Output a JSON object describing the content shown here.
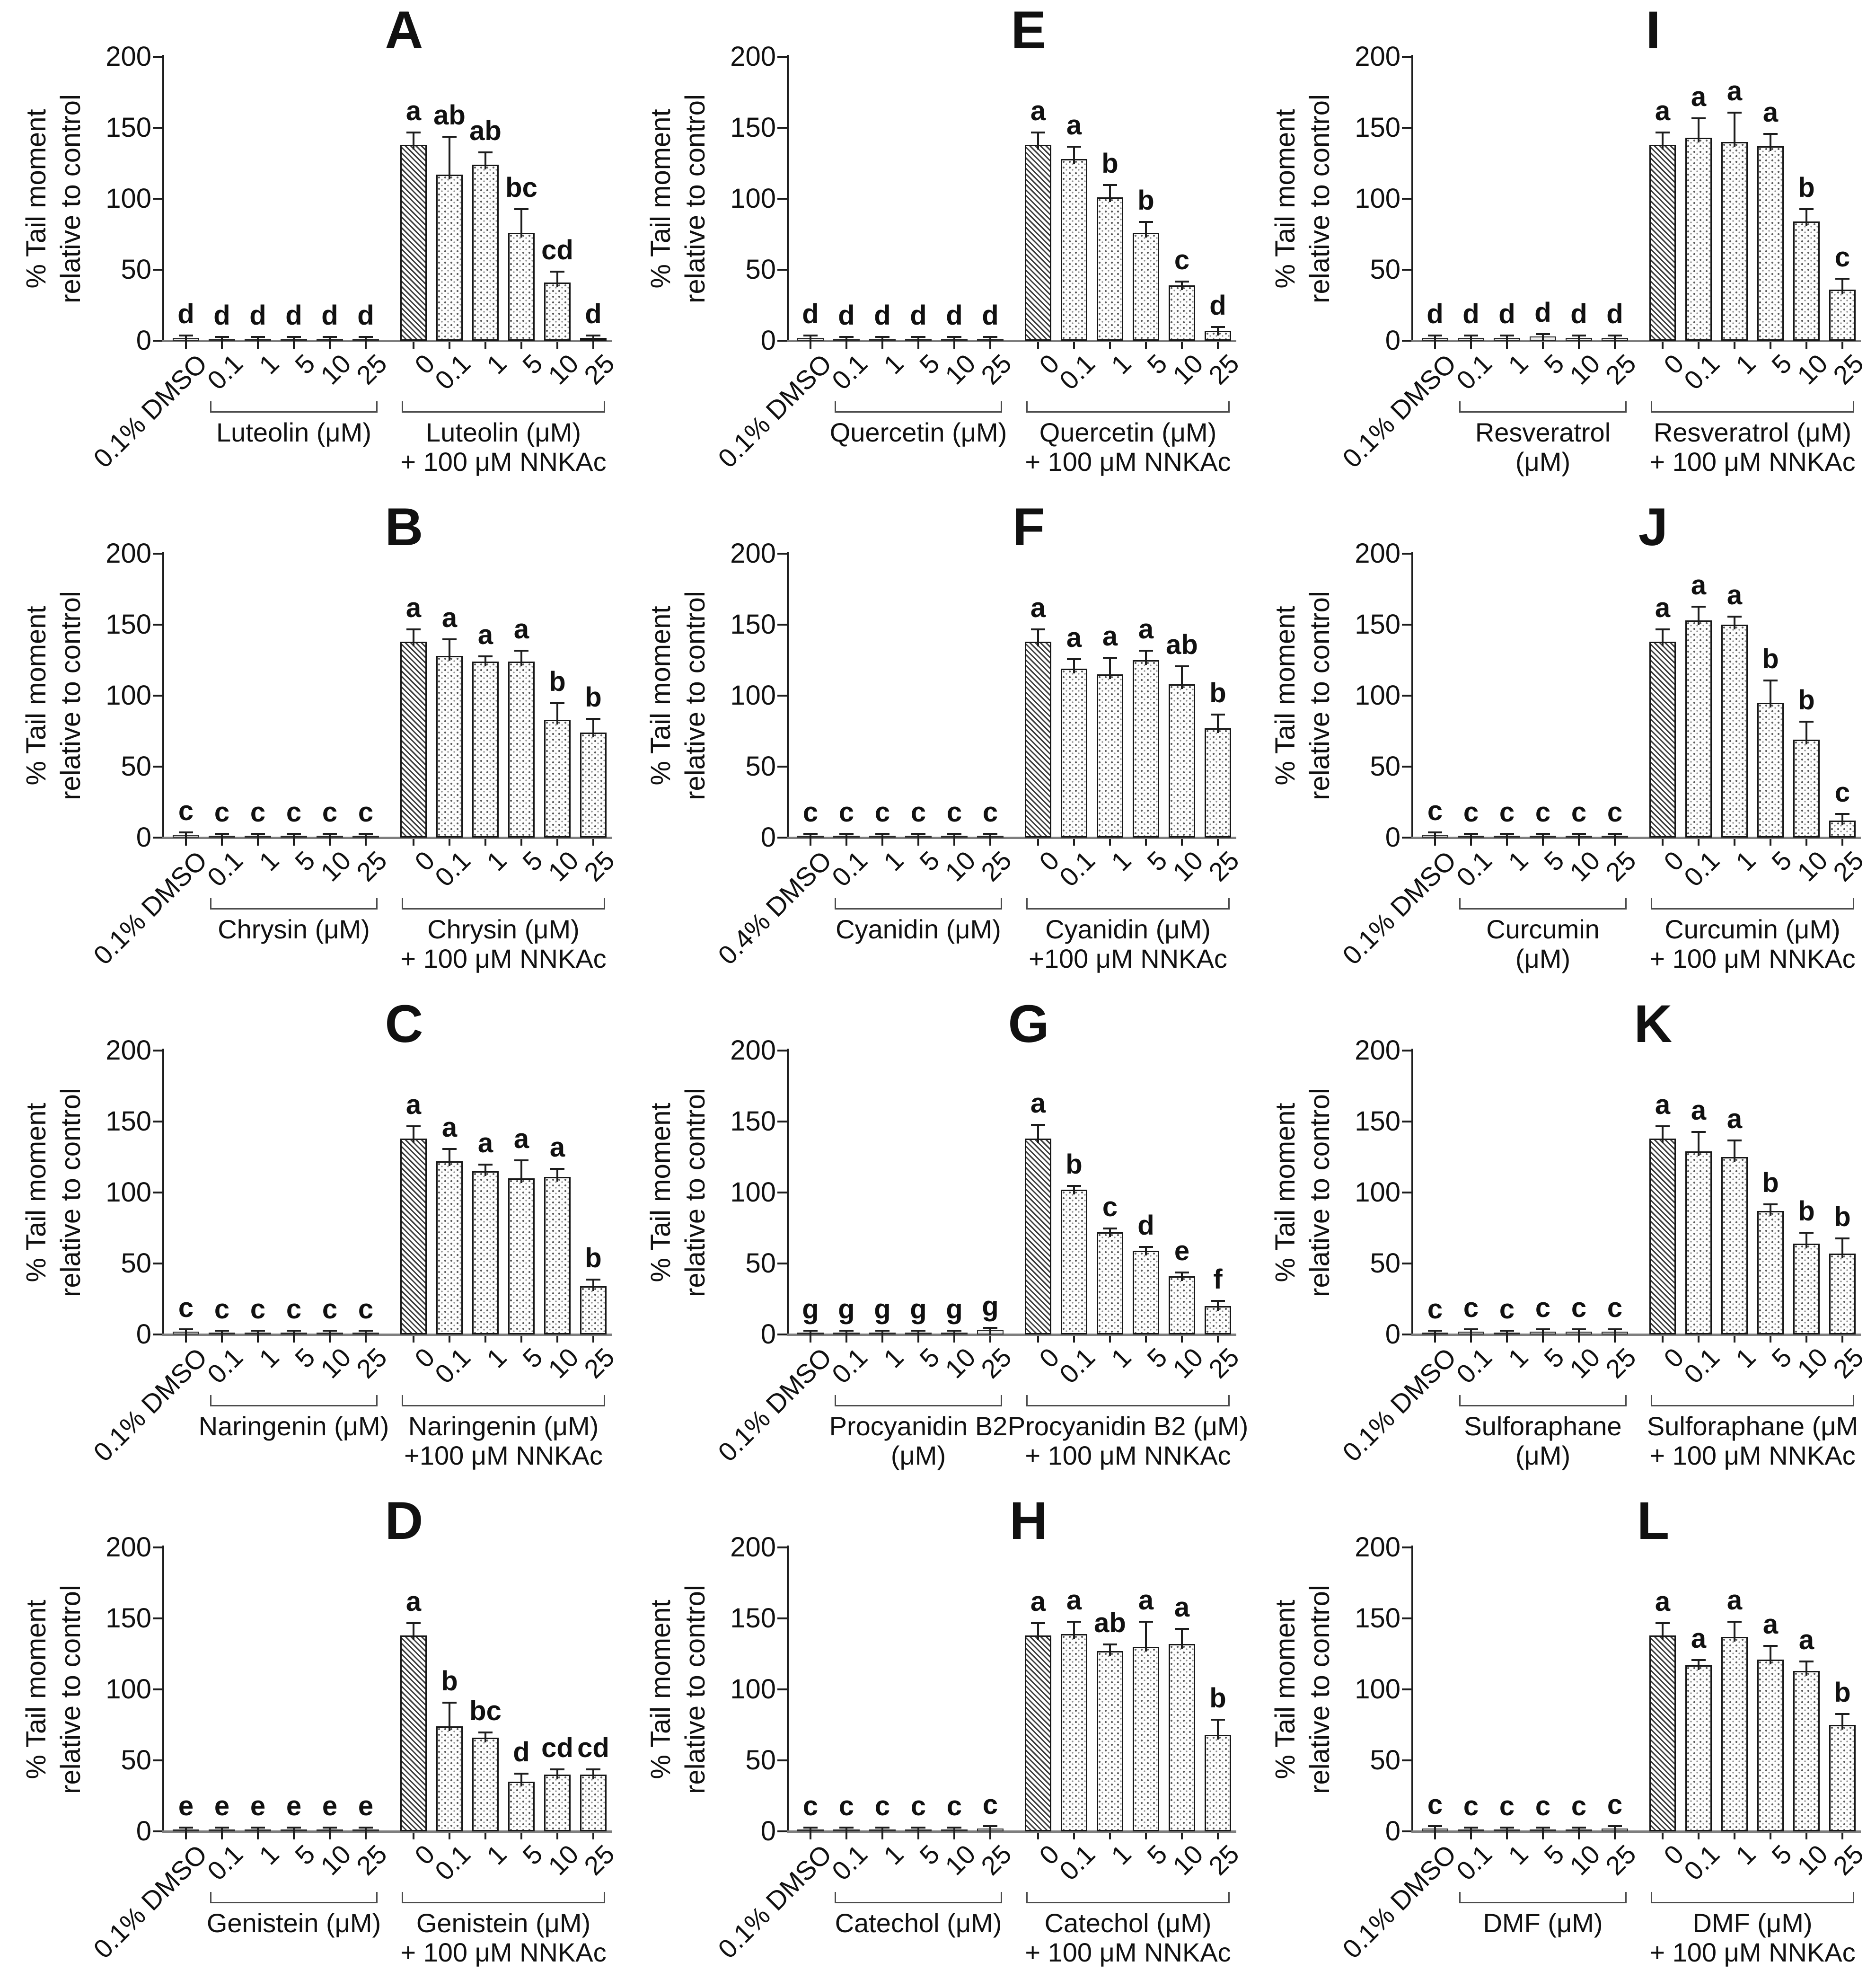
{
  "figure": {
    "background": "#ffffff",
    "bar_border_color": "#161616",
    "baseline_color": "#7e7e7e",
    "text_color": "#111111"
  },
  "chart_data": [
    {
      "type": "bar",
      "panel_letter": "A",
      "compound": "Luteolin",
      "ylabel_line1": "% Tail moment",
      "ylabel_line2": "relative to control",
      "ylim": [
        0,
        200
      ],
      "yticks": [
        0,
        50,
        100,
        150,
        200
      ],
      "grid": false,
      "categories": [
        "0.1% DMSO",
        "0.1",
        "1",
        "5",
        "10",
        "25",
        "0",
        "0.1",
        "1",
        "5",
        "10",
        "25"
      ],
      "values": [
        2,
        1,
        1,
        1,
        1,
        1,
        138,
        117,
        124,
        76,
        41,
        2
      ],
      "errors": [
        1,
        1,
        1,
        1,
        1,
        1,
        8,
        26,
        8,
        16,
        7,
        1
      ],
      "sig_letters": [
        "d",
        "d",
        "d",
        "d",
        "d",
        "d",
        "a",
        "ab",
        "ab",
        "bc",
        "cd",
        "d"
      ],
      "groups": [
        {
          "label_lines": [
            "Luteolin (μM)"
          ],
          "start": 1,
          "end": 5
        },
        {
          "label_lines": [
            "Luteolin (μM)",
            "+ 100 μM NNKAc"
          ],
          "start": 6,
          "end": 11
        }
      ]
    },
    {
      "type": "bar",
      "panel_letter": "E",
      "compound": "Quercetin",
      "ylabel_line1": "% Tail moment",
      "ylabel_line2": "relative to control",
      "ylim": [
        0,
        200
      ],
      "yticks": [
        0,
        50,
        100,
        150,
        200
      ],
      "grid": false,
      "categories": [
        "0.1% DMSO",
        "0.1",
        "1",
        "5",
        "10",
        "25",
        "0",
        "0.1",
        "1",
        "5",
        "10",
        "25"
      ],
      "values": [
        2,
        1,
        1,
        1,
        1,
        1,
        138,
        128,
        101,
        76,
        39,
        7
      ],
      "errors": [
        1,
        1,
        1,
        1,
        1,
        1,
        8,
        8,
        8,
        7,
        2,
        2
      ],
      "sig_letters": [
        "d",
        "d",
        "d",
        "d",
        "d",
        "d",
        "a",
        "a",
        "b",
        "b",
        "c",
        "d"
      ],
      "groups": [
        {
          "label_lines": [
            "Quercetin (μM)"
          ],
          "start": 1,
          "end": 5
        },
        {
          "label_lines": [
            "Quercetin (μM)",
            "+ 100 μM NNKAc"
          ],
          "start": 6,
          "end": 11
        }
      ]
    },
    {
      "type": "bar",
      "panel_letter": "I",
      "compound": "Resveratrol",
      "ylabel_line1": "% Tail moment",
      "ylabel_line2": "relative to control",
      "ylim": [
        0,
        200
      ],
      "yticks": [
        0,
        50,
        100,
        150,
        200
      ],
      "grid": false,
      "categories": [
        "0.1% DMSO",
        "0.1",
        "1",
        "5",
        "10",
        "25",
        "0",
        "0.1",
        "1",
        "5",
        "10",
        "25"
      ],
      "values": [
        2,
        2,
        2,
        3,
        2,
        2,
        138,
        143,
        140,
        137,
        84,
        36
      ],
      "errors": [
        1,
        1,
        1,
        1,
        1,
        1,
        8,
        13,
        20,
        8,
        8,
        7
      ],
      "sig_letters": [
        "d",
        "d",
        "d",
        "d",
        "d",
        "d",
        "a",
        "a",
        "a",
        "a",
        "b",
        "c"
      ],
      "groups": [
        {
          "label_lines": [
            "Resveratrol",
            "(μM)"
          ],
          "start": 1,
          "end": 5
        },
        {
          "label_lines": [
            "Resveratrol (μM)",
            "+ 100 μM NNKAc"
          ],
          "start": 6,
          "end": 11
        }
      ]
    },
    {
      "type": "bar",
      "panel_letter": "B",
      "compound": "Chrysin",
      "ylabel_line1": "% Tail moment",
      "ylabel_line2": "relative to control",
      "ylim": [
        0,
        200
      ],
      "yticks": [
        0,
        50,
        100,
        150,
        200
      ],
      "grid": false,
      "categories": [
        "0.1% DMSO",
        "0.1",
        "1",
        "5",
        "10",
        "25",
        "0",
        "0.1",
        "1",
        "5",
        "10",
        "25"
      ],
      "values": [
        2,
        1,
        1,
        1,
        1,
        1,
        138,
        128,
        124,
        124,
        83,
        74
      ],
      "errors": [
        1,
        1,
        1,
        1,
        1,
        1,
        8,
        11,
        3,
        7,
        11,
        9
      ],
      "sig_letters": [
        "c",
        "c",
        "c",
        "c",
        "c",
        "c",
        "a",
        "a",
        "a",
        "a",
        "b",
        "b"
      ],
      "groups": [
        {
          "label_lines": [
            "Chrysin (μM)"
          ],
          "start": 1,
          "end": 5
        },
        {
          "label_lines": [
            "Chrysin (μM)",
            "+ 100 μM NNKAc"
          ],
          "start": 6,
          "end": 11
        }
      ]
    },
    {
      "type": "bar",
      "panel_letter": "F",
      "compound": "Cyanidin",
      "ylabel_line1": "% Tail moment",
      "ylabel_line2": "relative to control",
      "ylim": [
        0,
        200
      ],
      "yticks": [
        0,
        50,
        100,
        150,
        200
      ],
      "grid": false,
      "categories": [
        "0.4% DMSO",
        "0.1",
        "1",
        "5",
        "10",
        "25",
        "0",
        "0.1",
        "1",
        "5",
        "10",
        "25"
      ],
      "values": [
        1,
        1,
        1,
        1,
        1,
        1,
        138,
        119,
        115,
        125,
        108,
        77
      ],
      "errors": [
        1,
        1,
        1,
        1,
        1,
        1,
        8,
        6,
        11,
        6,
        12,
        9
      ],
      "sig_letters": [
        "c",
        "c",
        "c",
        "c",
        "c",
        "c",
        "a",
        "a",
        "a",
        "a",
        "ab",
        "b"
      ],
      "groups": [
        {
          "label_lines": [
            "Cyanidin (μM)"
          ],
          "start": 1,
          "end": 5
        },
        {
          "label_lines": [
            "Cyanidin (μM)",
            "+100 μM NNKAc"
          ],
          "start": 6,
          "end": 11
        }
      ]
    },
    {
      "type": "bar",
      "panel_letter": "J",
      "compound": "Curcumin",
      "ylabel_line1": "% Tail moment",
      "ylabel_line2": "relative to control",
      "ylim": [
        0,
        200
      ],
      "yticks": [
        0,
        50,
        100,
        150,
        200
      ],
      "grid": false,
      "categories": [
        "0.1% DMSO",
        "0.1",
        "1",
        "5",
        "10",
        "25",
        "0",
        "0.1",
        "1",
        "5",
        "10",
        "25"
      ],
      "values": [
        2,
        1,
        1,
        1,
        1,
        1,
        138,
        153,
        150,
        95,
        69,
        12
      ],
      "errors": [
        1,
        1,
        1,
        1,
        1,
        1,
        8,
        9,
        5,
        15,
        12,
        4
      ],
      "sig_letters": [
        "c",
        "c",
        "c",
        "c",
        "c",
        "c",
        "a",
        "a",
        "a",
        "b",
        "b",
        "c"
      ],
      "groups": [
        {
          "label_lines": [
            "Curcumin",
            "(μM)"
          ],
          "start": 1,
          "end": 5
        },
        {
          "label_lines": [
            "Curcumin (μM)",
            "+ 100 μM NNKAc"
          ],
          "start": 6,
          "end": 11
        }
      ]
    },
    {
      "type": "bar",
      "panel_letter": "C",
      "compound": "Naringenin",
      "ylabel_line1": "% Tail moment",
      "ylabel_line2": "relative to control",
      "ylim": [
        0,
        200
      ],
      "yticks": [
        0,
        50,
        100,
        150,
        200
      ],
      "grid": false,
      "categories": [
        "0.1% DMSO",
        "0.1",
        "1",
        "5",
        "10",
        "25",
        "0",
        "0.1",
        "1",
        "5",
        "10",
        "25"
      ],
      "values": [
        2,
        1,
        1,
        1,
        1,
        1,
        138,
        122,
        115,
        110,
        111,
        34
      ],
      "errors": [
        1,
        1,
        1,
        1,
        1,
        1,
        8,
        8,
        4,
        12,
        5,
        4
      ],
      "sig_letters": [
        "c",
        "c",
        "c",
        "c",
        "c",
        "c",
        "a",
        "a",
        "a",
        "a",
        "a",
        "b"
      ],
      "groups": [
        {
          "label_lines": [
            "Naringenin (μM)"
          ],
          "start": 1,
          "end": 5
        },
        {
          "label_lines": [
            "Naringenin (μM)",
            "+100 μM NNKAc"
          ],
          "start": 6,
          "end": 11
        }
      ]
    },
    {
      "type": "bar",
      "panel_letter": "G",
      "compound": "Procyanidin B2",
      "ylabel_line1": "% Tail moment",
      "ylabel_line2": "relative to control",
      "ylim": [
        0,
        200
      ],
      "yticks": [
        0,
        50,
        100,
        150,
        200
      ],
      "grid": false,
      "categories": [
        "0.1% DMSO",
        "0.1",
        "1",
        "5",
        "10",
        "25",
        "0",
        "0.1",
        "1",
        "5",
        "10",
        "25"
      ],
      "values": [
        1,
        1,
        1,
        1,
        1,
        3,
        138,
        102,
        72,
        59,
        41,
        20
      ],
      "errors": [
        1,
        1,
        1,
        1,
        1,
        1,
        9,
        2,
        2,
        2,
        2,
        3
      ],
      "sig_letters": [
        "g",
        "g",
        "g",
        "g",
        "g",
        "g",
        "a",
        "b",
        "c",
        "d",
        "e",
        "f"
      ],
      "groups": [
        {
          "label_lines": [
            "Procyanidin B2",
            "(μM)"
          ],
          "start": 1,
          "end": 5
        },
        {
          "label_lines": [
            "Procyanidin B2 (μM)",
            "+ 100 μM NNKAc"
          ],
          "start": 6,
          "end": 11
        }
      ]
    },
    {
      "type": "bar",
      "panel_letter": "K",
      "compound": "Sulforaphane",
      "ylabel_line1": "% Tail moment",
      "ylabel_line2": "relative to control",
      "ylim": [
        0,
        200
      ],
      "yticks": [
        0,
        50,
        100,
        150,
        200
      ],
      "grid": false,
      "categories": [
        "0.1% DMSO",
        "0.1",
        "1",
        "5",
        "10",
        "25",
        "0",
        "0.1",
        "1",
        "5",
        "10",
        "25"
      ],
      "values": [
        1,
        2,
        1,
        2,
        2,
        2,
        138,
        129,
        125,
        87,
        64,
        57
      ],
      "errors": [
        1,
        1,
        1,
        1,
        1,
        1,
        8,
        13,
        11,
        4,
        7,
        10
      ],
      "sig_letters": [
        "c",
        "c",
        "c",
        "c",
        "c",
        "c",
        "a",
        "a",
        "a",
        "b",
        "b",
        "b"
      ],
      "groups": [
        {
          "label_lines": [
            "Sulforaphane",
            "(μM)"
          ],
          "start": 1,
          "end": 5
        },
        {
          "label_lines": [
            "Sulforaphane (μM",
            "+ 100 μM NNKAc"
          ],
          "start": 6,
          "end": 11
        }
      ]
    },
    {
      "type": "bar",
      "panel_letter": "D",
      "compound": "Genistein",
      "ylabel_line1": "% Tail moment",
      "ylabel_line2": "relative to control",
      "ylim": [
        0,
        200
      ],
      "yticks": [
        0,
        50,
        100,
        150,
        200
      ],
      "grid": false,
      "categories": [
        "0.1% DMSO",
        "0.1",
        "1",
        "5",
        "10",
        "25",
        "0",
        "0.1",
        "1",
        "5",
        "10",
        "25"
      ],
      "values": [
        1,
        1,
        1,
        1,
        1,
        1,
        138,
        74,
        66,
        35,
        40,
        40
      ],
      "errors": [
        1,
        1,
        1,
        1,
        1,
        1,
        8,
        16,
        3,
        5,
        3,
        3
      ],
      "sig_letters": [
        "e",
        "e",
        "e",
        "e",
        "e",
        "e",
        "a",
        "b",
        "bc",
        "d",
        "cd",
        "cd"
      ],
      "groups": [
        {
          "label_lines": [
            "Genistein (μM)"
          ],
          "start": 1,
          "end": 5
        },
        {
          "label_lines": [
            "Genistein (μM)",
            "+ 100 μM NNKAc"
          ],
          "start": 6,
          "end": 11
        }
      ]
    },
    {
      "type": "bar",
      "panel_letter": "H",
      "compound": "Catechol",
      "ylabel_line1": "% Tail moment",
      "ylabel_line2": "relative to control",
      "ylim": [
        0,
        200
      ],
      "yticks": [
        0,
        50,
        100,
        150,
        200
      ],
      "grid": false,
      "categories": [
        "0.1% DMSO",
        "0.1",
        "1",
        "5",
        "10",
        "25",
        "0",
        "0.1",
        "1",
        "5",
        "10",
        "25"
      ],
      "values": [
        1,
        1,
        1,
        1,
        1,
        2,
        138,
        139,
        127,
        130,
        132,
        68
      ],
      "errors": [
        1,
        1,
        1,
        1,
        1,
        1,
        8,
        8,
        4,
        17,
        10,
        10
      ],
      "sig_letters": [
        "c",
        "c",
        "c",
        "c",
        "c",
        "c",
        "a",
        "a",
        "ab",
        "a",
        "a",
        "b"
      ],
      "groups": [
        {
          "label_lines": [
            "Catechol (μM)"
          ],
          "start": 1,
          "end": 5
        },
        {
          "label_lines": [
            "Catechol (μM)",
            "+ 100 μM NNKAc"
          ],
          "start": 6,
          "end": 11
        }
      ]
    },
    {
      "type": "bar",
      "panel_letter": "L",
      "compound": "DMF",
      "ylabel_line1": "% Tail moment",
      "ylabel_line2": "relative to control",
      "ylim": [
        0,
        200
      ],
      "yticks": [
        0,
        50,
        100,
        150,
        200
      ],
      "grid": false,
      "categories": [
        "0.1% DMSO",
        "0.1",
        "1",
        "5",
        "10",
        "25",
        "0",
        "0.1",
        "1",
        "5",
        "10",
        "25"
      ],
      "values": [
        2,
        1,
        1,
        1,
        1,
        2,
        138,
        117,
        137,
        121,
        113,
        75
      ],
      "errors": [
        1,
        1,
        1,
        1,
        1,
        1,
        8,
        3,
        10,
        9,
        6,
        7
      ],
      "sig_letters": [
        "c",
        "c",
        "c",
        "c",
        "c",
        "c",
        "a",
        "a",
        "a",
        "a",
        "a",
        "b"
      ],
      "groups": [
        {
          "label_lines": [
            "DMF (μM)"
          ],
          "start": 1,
          "end": 5
        },
        {
          "label_lines": [
            "DMF (μM)",
            "+ 100 μM NNKAc"
          ],
          "start": 6,
          "end": 11
        }
      ]
    }
  ]
}
